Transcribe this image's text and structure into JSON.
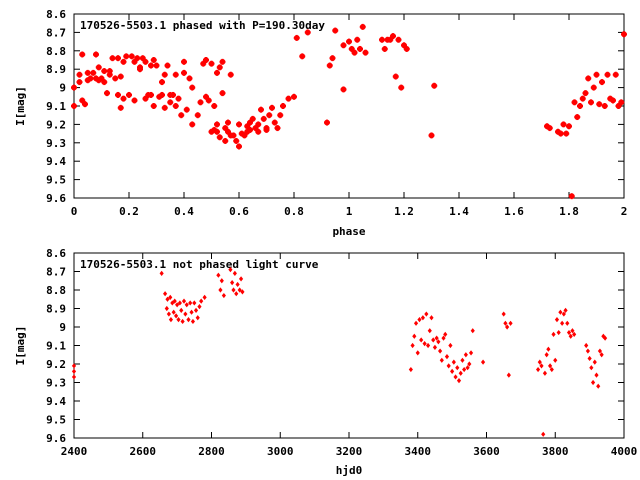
{
  "chart_data": [
    {
      "type": "scatter",
      "title": "170526-5503.1 phased with P=190.30day",
      "xlabel": "phase",
      "ylabel": "I[mag]",
      "xlim": [
        0,
        2
      ],
      "ylim": [
        9.6,
        8.6
      ],
      "y_inverted": true,
      "xticks": [
        "0",
        "0.2",
        "0.4",
        "0.6",
        "0.8",
        "1",
        "1.2",
        "1.4",
        "1.6",
        "1.8",
        "2"
      ],
      "yticks": [
        "8.6",
        "8.7",
        "8.8",
        "8.9",
        "9",
        "9.1",
        "9.2",
        "9.3",
        "9.4",
        "9.5",
        "9.6"
      ],
      "marker_color": "#ff0000",
      "marker": "star",
      "grid": false,
      "points": [
        [
          0.0,
          9.0
        ],
        [
          0.0,
          9.1
        ],
        [
          0.02,
          8.93
        ],
        [
          0.02,
          8.97
        ],
        [
          0.03,
          9.07
        ],
        [
          0.03,
          8.82
        ],
        [
          0.04,
          9.09
        ],
        [
          0.05,
          8.92
        ],
        [
          0.05,
          8.96
        ],
        [
          0.06,
          8.95
        ],
        [
          0.07,
          8.92
        ],
        [
          0.08,
          8.95
        ],
        [
          0.08,
          8.82
        ],
        [
          0.09,
          8.89
        ],
        [
          0.09,
          8.96
        ],
        [
          0.1,
          8.95
        ],
        [
          0.11,
          8.97
        ],
        [
          0.11,
          8.91
        ],
        [
          0.12,
          9.03
        ],
        [
          0.13,
          8.91
        ],
        [
          0.13,
          8.93
        ],
        [
          0.14,
          8.84
        ],
        [
          0.15,
          8.95
        ],
        [
          0.16,
          8.84
        ],
        [
          0.16,
          9.04
        ],
        [
          0.17,
          9.11
        ],
        [
          0.17,
          8.94
        ],
        [
          0.18,
          8.86
        ],
        [
          0.18,
          9.06
        ],
        [
          0.19,
          8.83
        ],
        [
          0.2,
          9.04
        ],
        [
          0.21,
          8.83
        ],
        [
          0.22,
          8.86
        ],
        [
          0.22,
          9.07
        ],
        [
          0.23,
          8.84
        ],
        [
          0.24,
          8.9
        ],
        [
          0.24,
          8.89
        ],
        [
          0.25,
          8.84
        ],
        [
          0.26,
          8.86
        ],
        [
          0.26,
          9.06
        ],
        [
          0.27,
          9.04
        ],
        [
          0.28,
          8.88
        ],
        [
          0.28,
          9.04
        ],
        [
          0.29,
          9.1
        ],
        [
          0.29,
          8.85
        ],
        [
          0.3,
          8.88
        ],
        [
          0.31,
          9.05
        ],
        [
          0.32,
          9.04
        ],
        [
          0.32,
          8.97
        ],
        [
          0.33,
          9.11
        ],
        [
          0.33,
          8.93
        ],
        [
          0.34,
          8.88
        ],
        [
          0.35,
          9.08
        ],
        [
          0.35,
          9.04
        ],
        [
          0.36,
          9.04
        ],
        [
          0.37,
          9.1
        ],
        [
          0.37,
          8.93
        ],
        [
          0.38,
          9.06
        ],
        [
          0.39,
          9.15
        ],
        [
          0.4,
          8.92
        ],
        [
          0.4,
          8.86
        ],
        [
          0.41,
          9.12
        ],
        [
          0.42,
          8.95
        ],
        [
          0.43,
          9.0
        ],
        [
          0.43,
          9.2
        ],
        [
          0.45,
          9.15
        ],
        [
          0.46,
          9.08
        ],
        [
          0.47,
          8.87
        ],
        [
          0.48,
          8.85
        ],
        [
          0.48,
          9.05
        ],
        [
          0.49,
          9.07
        ],
        [
          0.5,
          9.24
        ],
        [
          0.5,
          8.87
        ],
        [
          0.51,
          9.1
        ],
        [
          0.51,
          9.23
        ],
        [
          0.52,
          9.24
        ],
        [
          0.52,
          9.2
        ],
        [
          0.52,
          8.92
        ],
        [
          0.53,
          8.89
        ],
        [
          0.53,
          9.27
        ],
        [
          0.54,
          8.86
        ],
        [
          0.54,
          9.03
        ],
        [
          0.55,
          9.22
        ],
        [
          0.55,
          9.29
        ],
        [
          0.56,
          9.19
        ],
        [
          0.56,
          9.24
        ],
        [
          0.57,
          8.93
        ],
        [
          0.57,
          9.26
        ],
        [
          0.58,
          9.26
        ],
        [
          0.59,
          9.29
        ],
        [
          0.6,
          9.32
        ],
        [
          0.6,
          9.2
        ],
        [
          0.61,
          9.25
        ],
        [
          0.62,
          9.26
        ],
        [
          0.63,
          9.21
        ],
        [
          0.63,
          9.24
        ],
        [
          0.64,
          9.23
        ],
        [
          0.64,
          9.19
        ],
        [
          0.65,
          9.17
        ],
        [
          0.66,
          9.22
        ],
        [
          0.67,
          9.24
        ],
        [
          0.67,
          9.2
        ],
        [
          0.68,
          9.12
        ],
        [
          0.69,
          9.17
        ],
        [
          0.7,
          9.23
        ],
        [
          0.7,
          9.22
        ],
        [
          0.71,
          9.15
        ],
        [
          0.72,
          9.11
        ],
        [
          0.73,
          9.19
        ],
        [
          0.74,
          9.22
        ],
        [
          0.75,
          9.15
        ],
        [
          0.76,
          9.1
        ],
        [
          0.78,
          9.06
        ],
        [
          0.8,
          9.05
        ],
        [
          0.81,
          8.73
        ],
        [
          0.83,
          8.83
        ],
        [
          0.85,
          8.7
        ],
        [
          0.92,
          9.19
        ],
        [
          0.93,
          8.88
        ],
        [
          0.94,
          8.84
        ],
        [
          0.95,
          8.69
        ],
        [
          0.98,
          9.01
        ],
        [
          0.98,
          8.77
        ],
        [
          1.0,
          8.75
        ],
        [
          1.01,
          8.79
        ],
        [
          1.02,
          8.81
        ],
        [
          1.03,
          8.74
        ],
        [
          1.04,
          8.79
        ],
        [
          1.05,
          8.67
        ],
        [
          1.06,
          8.81
        ],
        [
          1.12,
          8.74
        ],
        [
          1.13,
          8.79
        ],
        [
          1.14,
          8.74
        ],
        [
          1.15,
          8.74
        ],
        [
          1.16,
          8.72
        ],
        [
          1.17,
          8.94
        ],
        [
          1.18,
          8.74
        ],
        [
          1.19,
          9.0
        ],
        [
          1.2,
          8.77
        ],
        [
          1.21,
          8.79
        ],
        [
          1.3,
          9.26
        ],
        [
          1.31,
          8.99
        ],
        [
          1.72,
          9.21
        ],
        [
          1.73,
          9.22
        ],
        [
          1.76,
          9.24
        ],
        [
          1.77,
          9.25
        ],
        [
          1.78,
          9.2
        ],
        [
          1.79,
          9.25
        ],
        [
          1.8,
          9.21
        ],
        [
          1.81,
          9.59
        ],
        [
          1.82,
          9.08
        ],
        [
          1.83,
          9.16
        ],
        [
          1.84,
          9.1
        ],
        [
          1.85,
          9.06
        ],
        [
          1.86,
          9.03
        ],
        [
          1.87,
          8.95
        ],
        [
          1.88,
          9.08
        ],
        [
          1.89,
          9.0
        ],
        [
          1.9,
          8.93
        ],
        [
          1.91,
          9.09
        ],
        [
          1.92,
          8.97
        ],
        [
          1.93,
          9.1
        ],
        [
          1.94,
          8.93
        ],
        [
          1.95,
          9.06
        ],
        [
          1.96,
          9.07
        ],
        [
          1.97,
          8.93
        ],
        [
          1.98,
          9.1
        ],
        [
          1.99,
          9.08
        ],
        [
          2.0,
          8.71
        ]
      ]
    },
    {
      "type": "scatter",
      "title": "170526-5503.1 not phased light curve",
      "xlabel": "hjd0",
      "ylabel": "I[mag]",
      "xlim": [
        2400,
        4000
      ],
      "ylim": [
        9.6,
        8.6
      ],
      "y_inverted": true,
      "xticks": [
        "2400",
        "2600",
        "2800",
        "3000",
        "3200",
        "3400",
        "3600",
        "3800",
        "4000"
      ],
      "yticks": [
        "8.6",
        "8.7",
        "8.8",
        "8.9",
        "9",
        "9.1",
        "9.2",
        "9.3",
        "9.4",
        "9.5",
        "9.6"
      ],
      "marker_color": "#ff0000",
      "marker": "diamond",
      "grid": false,
      "points": [
        [
          2400,
          9.21
        ],
        [
          2400,
          9.24
        ],
        [
          2400,
          9.27
        ],
        [
          2655,
          8.71
        ],
        [
          2665,
          8.82
        ],
        [
          2670,
          8.9
        ],
        [
          2672,
          8.85
        ],
        [
          2676,
          8.93
        ],
        [
          2680,
          8.84
        ],
        [
          2682,
          8.96
        ],
        [
          2686,
          8.87
        ],
        [
          2690,
          8.92
        ],
        [
          2693,
          8.86
        ],
        [
          2697,
          8.94
        ],
        [
          2700,
          8.88
        ],
        [
          2704,
          8.96
        ],
        [
          2708,
          8.87
        ],
        [
          2712,
          8.91
        ],
        [
          2716,
          8.97
        ],
        [
          2720,
          8.86
        ],
        [
          2724,
          8.93
        ],
        [
          2728,
          8.88
        ],
        [
          2733,
          8.96
        ],
        [
          2738,
          8.87
        ],
        [
          2742,
          8.92
        ],
        [
          2746,
          8.97
        ],
        [
          2750,
          8.87
        ],
        [
          2755,
          8.91
        ],
        [
          2760,
          8.95
        ],
        [
          2765,
          8.89
        ],
        [
          2770,
          8.86
        ],
        [
          2780,
          8.84
        ],
        [
          2820,
          8.72
        ],
        [
          2826,
          8.8
        ],
        [
          2830,
          8.75
        ],
        [
          2836,
          8.83
        ],
        [
          2855,
          8.69
        ],
        [
          2860,
          8.76
        ],
        [
          2864,
          8.8
        ],
        [
          2868,
          8.71
        ],
        [
          2872,
          8.82
        ],
        [
          2876,
          8.77
        ],
        [
          2882,
          8.8
        ],
        [
          2886,
          8.74
        ],
        [
          2890,
          8.81
        ],
        [
          3380,
          9.23
        ],
        [
          3385,
          9.1
        ],
        [
          3390,
          9.05
        ],
        [
          3395,
          8.98
        ],
        [
          3400,
          9.14
        ],
        [
          3405,
          8.96
        ],
        [
          3410,
          9.07
        ],
        [
          3415,
          8.95
        ],
        [
          3420,
          9.09
        ],
        [
          3425,
          8.93
        ],
        [
          3430,
          9.1
        ],
        [
          3435,
          9.02
        ],
        [
          3440,
          8.95
        ],
        [
          3445,
          9.07
        ],
        [
          3450,
          9.11
        ],
        [
          3455,
          9.06
        ],
        [
          3460,
          9.08
        ],
        [
          3465,
          9.13
        ],
        [
          3470,
          9.18
        ],
        [
          3475,
          9.06
        ],
        [
          3480,
          9.04
        ],
        [
          3485,
          9.16
        ],
        [
          3490,
          9.21
        ],
        [
          3495,
          9.1
        ],
        [
          3500,
          9.24
        ],
        [
          3505,
          9.19
        ],
        [
          3510,
          9.27
        ],
        [
          3515,
          9.22
        ],
        [
          3520,
          9.29
        ],
        [
          3525,
          9.25
        ],
        [
          3530,
          9.18
        ],
        [
          3535,
          9.23
        ],
        [
          3540,
          9.15
        ],
        [
          3545,
          9.22
        ],
        [
          3550,
          9.2
        ],
        [
          3555,
          9.14
        ],
        [
          3560,
          9.02
        ],
        [
          3590,
          9.19
        ],
        [
          3650,
          8.93
        ],
        [
          3655,
          8.98
        ],
        [
          3660,
          9.0
        ],
        [
          3665,
          9.26
        ],
        [
          3670,
          8.98
        ],
        [
          3750,
          9.23
        ],
        [
          3755,
          9.19
        ],
        [
          3760,
          9.21
        ],
        [
          3765,
          9.58
        ],
        [
          3770,
          9.25
        ],
        [
          3775,
          9.15
        ],
        [
          3780,
          9.12
        ],
        [
          3785,
          9.21
        ],
        [
          3790,
          9.23
        ],
        [
          3795,
          9.04
        ],
        [
          3800,
          9.18
        ],
        [
          3805,
          8.96
        ],
        [
          3810,
          9.03
        ],
        [
          3815,
          8.92
        ],
        [
          3820,
          8.98
        ],
        [
          3825,
          8.93
        ],
        [
          3830,
          8.91
        ],
        [
          3835,
          8.98
        ],
        [
          3840,
          9.03
        ],
        [
          3845,
          9.05
        ],
        [
          3850,
          9.02
        ],
        [
          3855,
          9.04
        ],
        [
          3890,
          9.1
        ],
        [
          3895,
          9.13
        ],
        [
          3900,
          9.17
        ],
        [
          3905,
          9.22
        ],
        [
          3910,
          9.3
        ],
        [
          3915,
          9.19
        ],
        [
          3920,
          9.26
        ],
        [
          3925,
          9.32
        ],
        [
          3930,
          9.13
        ],
        [
          3935,
          9.15
        ],
        [
          3940,
          9.05
        ],
        [
          3945,
          9.06
        ]
      ]
    }
  ]
}
